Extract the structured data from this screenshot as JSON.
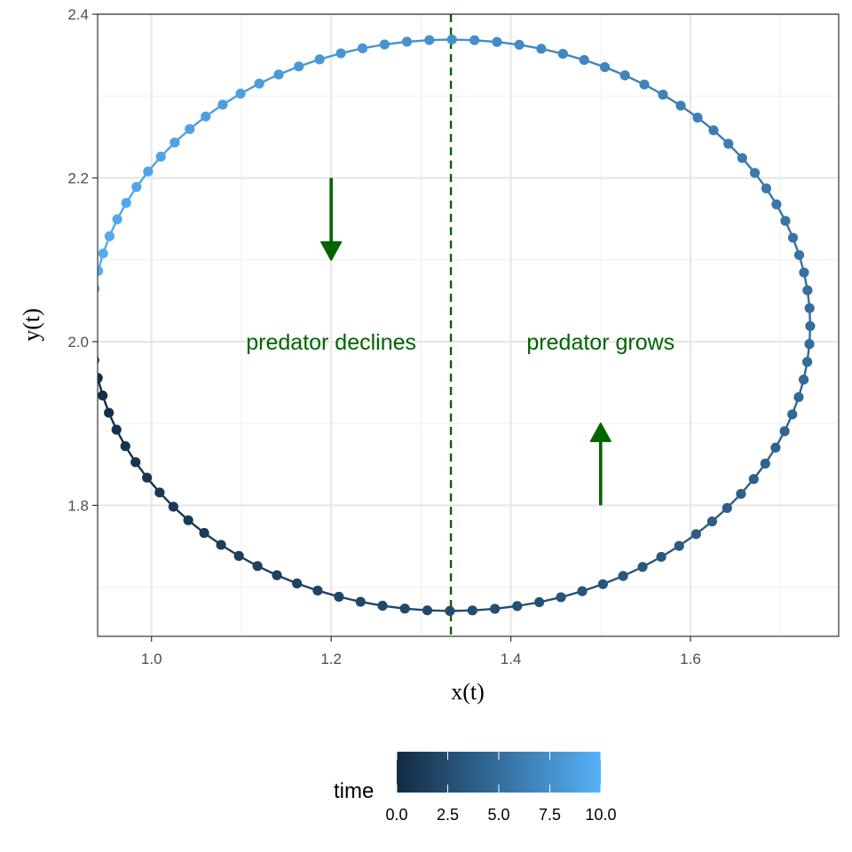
{
  "chart_data": {
    "type": "scatter",
    "subtype": "phase-plane trajectory (points joined by path)",
    "xlabel": "x(t)",
    "ylabel": "y(t)",
    "xlim": [
      0.94,
      1.765
    ],
    "ylim": [
      1.64,
      2.4
    ],
    "x_ticks": [
      1.0,
      1.2,
      1.4,
      1.6
    ],
    "x_tick_labels": [
      "1.0",
      "1.2",
      "1.4",
      "1.6"
    ],
    "y_ticks": [
      1.8,
      2.0,
      2.2,
      2.4
    ],
    "y_tick_labels": [
      "1.8",
      "2.0",
      "2.2",
      "2.4"
    ],
    "grid": true,
    "theme": "black-and-white",
    "trajectory": {
      "center_x": 1.3333,
      "center_y": 2.02,
      "radius_x": 0.4,
      "radius_y": 0.349,
      "start": [
        1.0,
        2.0
      ],
      "direction": "clockwise (down from start, right along bottom, up the right side, back along top)",
      "n_points": 100,
      "time_range": [
        0.0,
        10.0
      ],
      "color_low": "#132B43",
      "color_high": "#56B1F7",
      "color_by": "time"
    },
    "vline": {
      "x": 1.3333,
      "style": "dashed",
      "color": "#006400"
    },
    "annotations": [
      {
        "text": "predator declines",
        "x": 1.2,
        "y": 2.0,
        "color": "#006400"
      },
      {
        "text": "predator grows",
        "x": 1.5,
        "y": 2.0,
        "color": "#006400"
      }
    ],
    "arrows": [
      {
        "x": 1.2,
        "y_from": 2.2,
        "y_to": 2.1,
        "direction": "down",
        "color": "#006400"
      },
      {
        "x": 1.5,
        "y_from": 1.8,
        "y_to": 1.9,
        "direction": "up",
        "color": "#006400"
      }
    ],
    "legend": {
      "title": "time",
      "position": "bottom",
      "type": "colorbar",
      "range": [
        0.0,
        10.0
      ],
      "ticks": [
        0.0,
        2.5,
        5.0,
        7.5,
        10.0
      ],
      "tick_labels": [
        "0.0",
        "2.5",
        "5.0",
        "7.5",
        "10.0"
      ]
    }
  }
}
